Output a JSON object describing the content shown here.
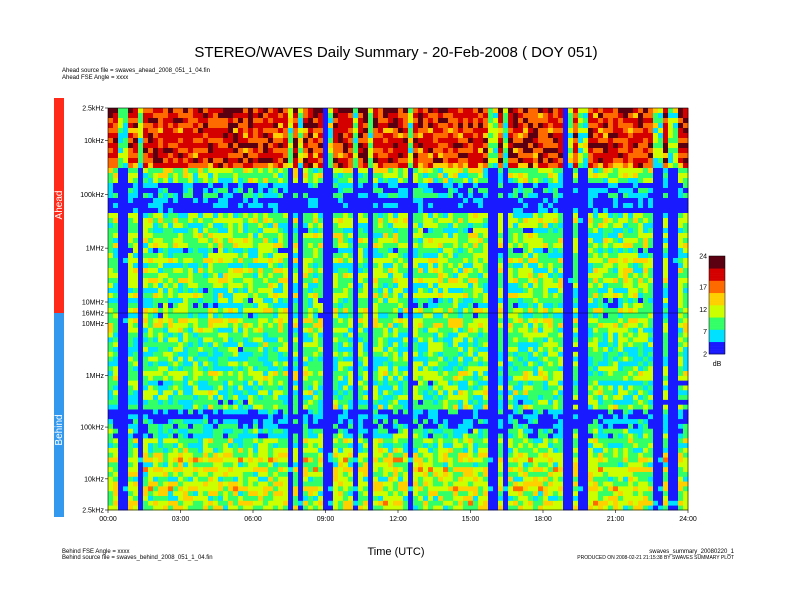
{
  "page": {
    "title": "STEREO/WAVES Daily Summary - 20-Feb-2008 ( DOY 051)",
    "ahead_source_file": "Ahead source file = swaves_ahead_2008_051_1_04.fin",
    "ahead_fse_angle": "Ahead FSE Angle = xxxx",
    "behind_fse_angle": "Behind FSE Angle = xxxx",
    "behind_source_file": "Behind source file = swaves_behind_2008_051_1_04.fin",
    "summary_file": "swaves_summary_20080220_1",
    "production_note": "PRODUCED ON 2008-02-21 21:15:38 BY SWAVES SUMMARY PLOT",
    "xlabel": "Time (UTC)"
  },
  "colors": {
    "ahead_band": "#ff2a1a",
    "behind_band": "#3399ee",
    "cmap": [
      "#1a1aff",
      "#00e0ff",
      "#33ff66",
      "#ccff00",
      "#ffd000",
      "#ff6a00",
      "#d40000",
      "#5a0010"
    ]
  },
  "chart_data": {
    "type": "heatmap",
    "title": "STEREO/WAVES Daily Summary - 20-Feb-2008 ( DOY 051)",
    "xlabel": "Time (UTC)",
    "x_ticks": [
      "00:00",
      "03:00",
      "06:00",
      "09:00",
      "12:00",
      "15:00",
      "18:00",
      "21:00",
      "24:00"
    ],
    "xlim_hours": [
      0,
      24
    ],
    "panels": [
      {
        "name": "Ahead",
        "y_ticks": [
          "2.5kHz",
          "10kHz",
          "100kHz",
          "1MHz",
          "10MHz",
          "16MHz"
        ],
        "y_ticks_values_hz": [
          2500,
          10000,
          100000,
          1000000,
          10000000,
          16000000
        ],
        "yscale": "log",
        "y_direction": "frequency decreasing upward"
      },
      {
        "name": "Behind",
        "y_ticks": [
          "10MHz",
          "1MHz",
          "100kHz",
          "10kHz",
          "2.5kHz"
        ],
        "y_ticks_values_hz": [
          10000000,
          1000000,
          100000,
          10000,
          2500
        ],
        "yscale": "log",
        "y_direction": "frequency decreasing downward"
      }
    ],
    "colorbar": {
      "ticks": [
        "24",
        "17",
        "12",
        "7",
        "2"
      ],
      "values": [
        24,
        17,
        12,
        7,
        2
      ],
      "range": [
        2,
        24
      ],
      "unit": "dB"
    }
  }
}
